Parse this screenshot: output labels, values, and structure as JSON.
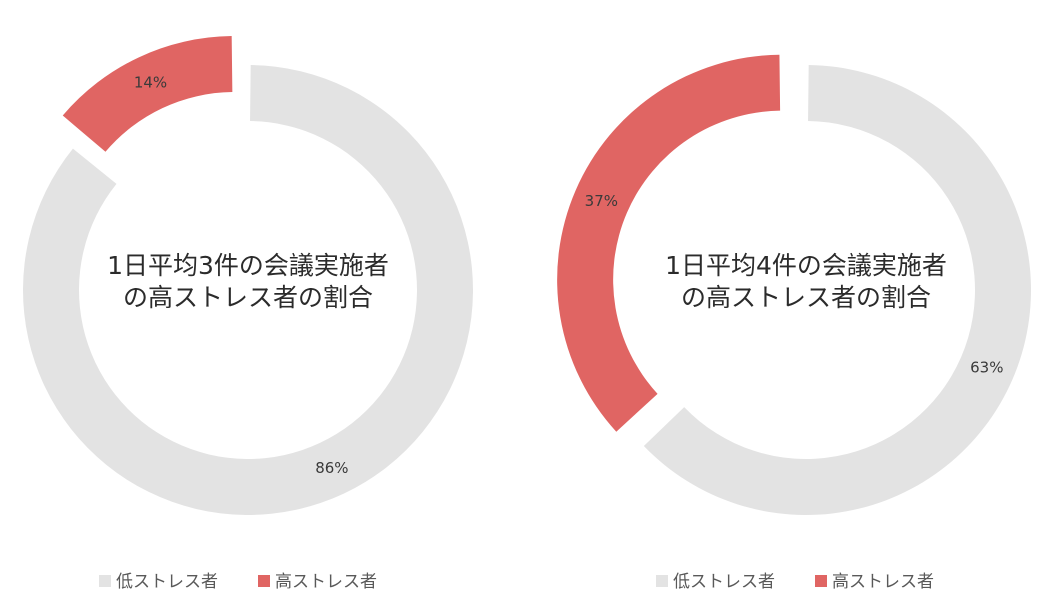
{
  "chart_data": [
    {
      "type": "pie",
      "variant": "donut",
      "title_lines": [
        "1日平均3件の会議実施者",
        "の高ストレス者の割合"
      ],
      "categories": [
        "低ストレス者",
        "高ストレス者"
      ],
      "values": [
        86,
        14
      ],
      "labels": [
        "86%",
        "14%"
      ],
      "exploded": "高ストレス者",
      "legend_placement": "bottom"
    },
    {
      "type": "pie",
      "variant": "donut",
      "title_lines": [
        "1日平均4件の会議実施者",
        "の高ストレス者の割合"
      ],
      "categories": [
        "低ストレス者",
        "高ストレス者"
      ],
      "values": [
        63,
        37
      ],
      "labels": [
        "63%",
        "37%"
      ],
      "exploded": "高ストレス者",
      "legend_placement": "bottom"
    }
  ],
  "colors": {
    "low": "#e3e3e3",
    "high": "#e06563"
  }
}
